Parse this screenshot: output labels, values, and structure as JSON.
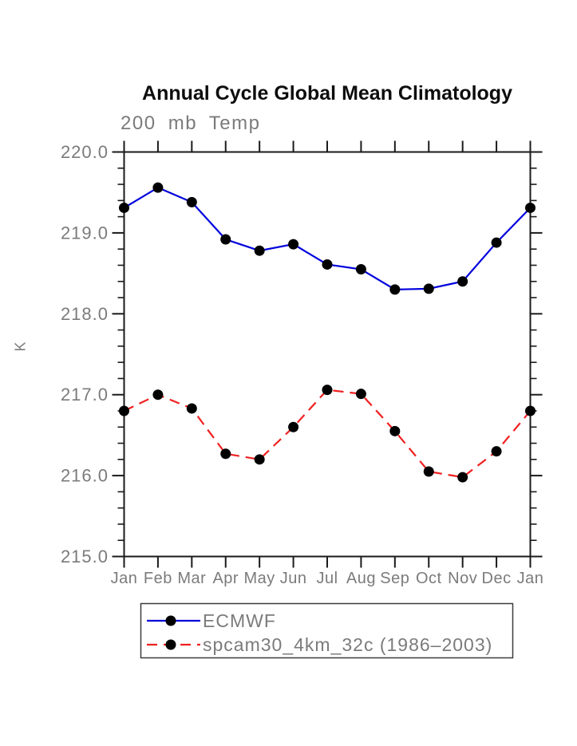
{
  "titles": {
    "main": "Annual Cycle Global Mean Climatology",
    "sub": "200 mb Temp",
    "ylabel": "K"
  },
  "colors": {
    "background": "#ffffff",
    "axis": "#1a1a1a",
    "label_gray": "#7b7b7b",
    "title_black": "#0d0d0d",
    "marker": "#000000",
    "legend_border": "#3c3c3c",
    "ecmwf_blue": "#0000dd",
    "spcam_red": "#f02020"
  },
  "chart_data": {
    "type": "line",
    "title": "Annual Cycle Global Mean Climatology",
    "subtitle": "200 mb Temp",
    "xlabel": "",
    "ylabel": "K",
    "categories": [
      "Jan",
      "Feb",
      "Mar",
      "Apr",
      "May",
      "Jun",
      "Jul",
      "Aug",
      "Sep",
      "Oct",
      "Nov",
      "Dec",
      "Jan"
    ],
    "series": [
      {
        "name": "ECMWF",
        "color_key": "ecmwf_blue",
        "line_style": "solid",
        "marker": "filled-circle",
        "values": [
          219.31,
          219.56,
          219.38,
          218.92,
          218.78,
          218.86,
          218.61,
          218.55,
          218.3,
          218.31,
          218.4,
          218.88,
          219.31
        ]
      },
      {
        "name": "spcam30_4km_32c (1986–2003)",
        "color_key": "spcam_red",
        "line_style": "dashed",
        "marker": "filled-circle",
        "values": [
          216.8,
          217.0,
          216.83,
          216.27,
          216.2,
          216.6,
          217.06,
          217.01,
          216.55,
          216.05,
          215.98,
          216.3,
          216.8
        ]
      }
    ],
    "ylim": [
      215.0,
      220.0
    ],
    "yticks": [
      215.0,
      216.0,
      217.0,
      218.0,
      219.0,
      220.0
    ],
    "ytick_labels": [
      "215.0",
      "216.0",
      "217.0",
      "218.0",
      "219.0",
      "220.0"
    ],
    "minor_tick_step": 0.2,
    "grid": false,
    "legend_position": "below-left"
  }
}
